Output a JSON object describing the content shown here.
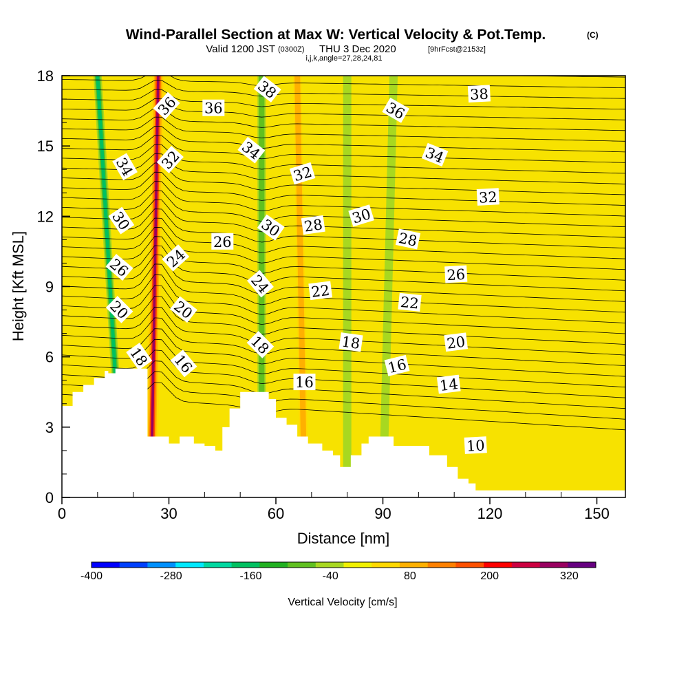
{
  "titles": {
    "main": "Wind-Parallel Section at Max W: Vertical Velocity & Pot.Temp.",
    "copyright": "(C)",
    "valid_prefix": "Valid 1200 JST",
    "valid_utc": "(0300Z)",
    "valid_date": "THU 3 Dec 2020",
    "forecast": "[9hrFcst@2153z]",
    "ijk": "i,j,k,angle=27,28,24,81"
  },
  "chart_data": {
    "type": "heatmap",
    "xlabel": "Distance [nm]",
    "ylabel": "Height [Kft MSL]",
    "xlim": [
      0,
      158
    ],
    "ylim": [
      0,
      18
    ],
    "x_ticks": [
      0,
      30,
      60,
      90,
      120,
      150
    ],
    "y_ticks": [
      0,
      3,
      6,
      9,
      12,
      15,
      18
    ],
    "colorbar": {
      "label": "Vertical Velocity [cm/s]",
      "min": -400,
      "max": 360,
      "tick_labels": [
        -400,
        -280,
        -160,
        -40,
        80,
        200,
        320
      ],
      "colors": [
        "#0000ff",
        "#0040ff",
        "#0090ff",
        "#00e8ff",
        "#00d8a0",
        "#00c060",
        "#20b020",
        "#60c020",
        "#a8d820",
        "#f0f000",
        "#ffd800",
        "#ffb000",
        "#ff8000",
        "#ff5000",
        "#ff0000",
        "#cc0040",
        "#990060",
        "#660080"
      ]
    },
    "velocity_bands": [
      {
        "x_surface": 17,
        "x_top": 10,
        "value": -200
      },
      {
        "x_surface": 25,
        "x_top": 27,
        "value": 300
      },
      {
        "x_surface": 56,
        "x_top": 56,
        "value": -120
      },
      {
        "x_surface": 68,
        "x_top": 66,
        "value": 100
      },
      {
        "x_surface": 80,
        "x_top": 80,
        "value": -60
      },
      {
        "x_surface": 90,
        "x_top": 93,
        "value": -40
      }
    ],
    "terrain": {
      "x": [
        0,
        3,
        3,
        6,
        6,
        9,
        9,
        12,
        12,
        13,
        13,
        15,
        15,
        18,
        18,
        21,
        21,
        24,
        24,
        26,
        26,
        30,
        30,
        33,
        33,
        37,
        37,
        40,
        40,
        43,
        43,
        45,
        45,
        47,
        47,
        50,
        50,
        53,
        53,
        58,
        58,
        60,
        60,
        63,
        63,
        66,
        66,
        69,
        69,
        73,
        73,
        76,
        76,
        78,
        78,
        81,
        81,
        84,
        84,
        86,
        86,
        89,
        89,
        93,
        93,
        96,
        96,
        103,
        103,
        108,
        108,
        111,
        111,
        114,
        114,
        116,
        116,
        118,
        118,
        121,
        121,
        158
      ],
      "y": [
        3.9,
        3.9,
        4.5,
        4.5,
        4.8,
        4.8,
        5.1,
        5.1,
        5.4,
        5.4,
        5.3,
        5.3,
        5.5,
        5.5,
        5.5,
        5.5,
        5.5,
        5.5,
        2.6,
        2.6,
        2.6,
        2.6,
        2.3,
        2.3,
        2.6,
        2.6,
        2.3,
        2.3,
        2.2,
        2.2,
        2.0,
        2.0,
        3.0,
        3.0,
        3.8,
        3.8,
        4.5,
        4.5,
        4.5,
        4.5,
        4.2,
        4.2,
        3.4,
        3.4,
        3.1,
        3.1,
        2.6,
        2.6,
        2.3,
        2.3,
        2.0,
        2.0,
        1.8,
        1.8,
        1.3,
        1.3,
        1.8,
        1.8,
        2.3,
        2.3,
        2.6,
        2.6,
        2.6,
        2.6,
        2.2,
        2.2,
        2.2,
        2.2,
        1.8,
        1.8,
        1.3,
        1.3,
        0.8,
        0.8,
        0.6,
        0.6,
        0.3,
        0.3,
        0.3,
        0.3,
        0.3,
        0.3
      ]
    },
    "contour_labels": [
      {
        "text": "36",
        "x": 29.5,
        "y": 16.7,
        "angle": -48
      },
      {
        "text": "36",
        "x": 42.5,
        "y": 16.6,
        "angle": 0
      },
      {
        "text": "38",
        "x": 57.5,
        "y": 17.4,
        "angle": 38
      },
      {
        "text": "36",
        "x": 93.5,
        "y": 16.5,
        "angle": 30
      },
      {
        "text": "38",
        "x": 117,
        "y": 17.2,
        "angle": -3
      },
      {
        "text": "34",
        "x": 17.5,
        "y": 14.1,
        "angle": 60
      },
      {
        "text": "32",
        "x": 30.5,
        "y": 14.4,
        "angle": -48
      },
      {
        "text": "34",
        "x": 53,
        "y": 14.8,
        "angle": 38
      },
      {
        "text": "32",
        "x": 67.5,
        "y": 13.8,
        "angle": -17
      },
      {
        "text": "34",
        "x": 104.5,
        "y": 14.6,
        "angle": 22
      },
      {
        "text": "32",
        "x": 119.5,
        "y": 12.8,
        "angle": -3
      },
      {
        "text": "30",
        "x": 16.5,
        "y": 11.8,
        "angle": 56
      },
      {
        "text": "30",
        "x": 58.5,
        "y": 11.5,
        "angle": 35
      },
      {
        "text": "28",
        "x": 70.5,
        "y": 11.6,
        "angle": -8
      },
      {
        "text": "30",
        "x": 84,
        "y": 12.0,
        "angle": -17
      },
      {
        "text": "28",
        "x": 97,
        "y": 11.0,
        "angle": 12
      },
      {
        "text": "26",
        "x": 16,
        "y": 9.8,
        "angle": 40
      },
      {
        "text": "24",
        "x": 32,
        "y": 10.2,
        "angle": -42
      },
      {
        "text": "26",
        "x": 45,
        "y": 10.9,
        "angle": 0
      },
      {
        "text": "24",
        "x": 55.5,
        "y": 9.1,
        "angle": 50
      },
      {
        "text": "26",
        "x": 110.5,
        "y": 9.5,
        "angle": -3
      },
      {
        "text": "20",
        "x": 16,
        "y": 8.0,
        "angle": 45
      },
      {
        "text": "20",
        "x": 34,
        "y": 8.0,
        "angle": 38
      },
      {
        "text": "22",
        "x": 72.5,
        "y": 8.8,
        "angle": -7
      },
      {
        "text": "22",
        "x": 97.5,
        "y": 8.3,
        "angle": 6
      },
      {
        "text": "18",
        "x": 21.5,
        "y": 6.0,
        "angle": 55
      },
      {
        "text": "16",
        "x": 34,
        "y": 5.7,
        "angle": 50
      },
      {
        "text": "18",
        "x": 55.5,
        "y": 6.5,
        "angle": 45
      },
      {
        "text": "18",
        "x": 81,
        "y": 6.6,
        "angle": 8
      },
      {
        "text": "20",
        "x": 110.5,
        "y": 6.6,
        "angle": -7
      },
      {
        "text": "16",
        "x": 68,
        "y": 4.9,
        "angle": 0
      },
      {
        "text": "16",
        "x": 94,
        "y": 5.6,
        "angle": -14
      },
      {
        "text": "14",
        "x": 108.5,
        "y": 4.8,
        "angle": -7
      },
      {
        "text": "10",
        "x": 116,
        "y": 2.2,
        "angle": -3
      }
    ]
  }
}
